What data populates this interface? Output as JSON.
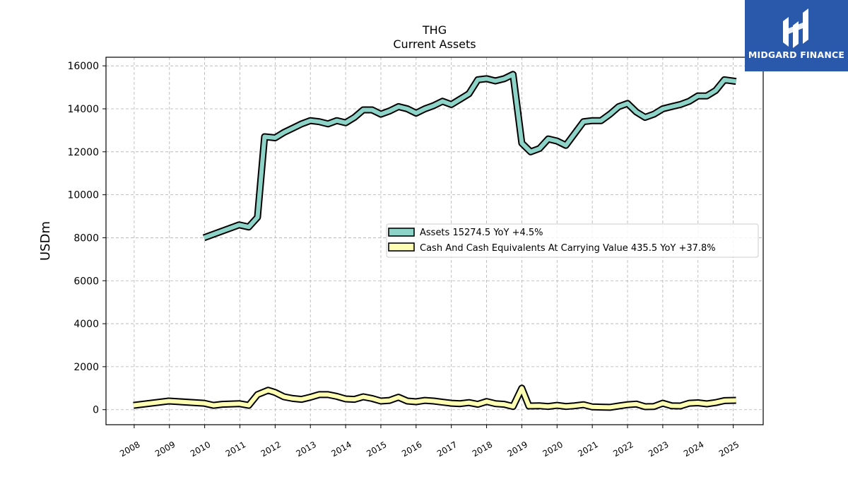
{
  "brand": {
    "name": "MIDGARD FINANCE",
    "logo_icon": "midgard-logo-icon",
    "color": "#2a58ab"
  },
  "chart_data": {
    "type": "line",
    "title": "THG",
    "subtitle": "Current  Assets",
    "ylabel": "USDm",
    "xlabel": "",
    "ylim": [
      -700,
      16400
    ],
    "xlim": [
      2007.2,
      2025.85
    ],
    "yticks": [
      0,
      2000,
      4000,
      6000,
      8000,
      10000,
      12000,
      14000,
      16000
    ],
    "xticks": [
      "2008",
      "2009",
      "2010",
      "2011",
      "2012",
      "2013",
      "2014",
      "2015",
      "2016",
      "2017",
      "2018",
      "2019",
      "2020",
      "2021",
      "2022",
      "2023",
      "2024",
      "2025"
    ],
    "grid": true,
    "legend_position": "center-right",
    "series": [
      {
        "name": "Assets",
        "legend_label": "Assets  15274.5 YoY +4.5%",
        "color": "#8dd3c7",
        "points": [
          [
            2009.98,
            8000
          ],
          [
            2010.98,
            8600
          ],
          [
            2011.25,
            8500
          ],
          [
            2011.5,
            8950
          ],
          [
            2011.7,
            12700
          ],
          [
            2012.0,
            12650
          ],
          [
            2012.25,
            12900
          ],
          [
            2012.5,
            13100
          ],
          [
            2012.75,
            13300
          ],
          [
            2013.0,
            13450
          ],
          [
            2013.25,
            13400
          ],
          [
            2013.5,
            13300
          ],
          [
            2013.75,
            13450
          ],
          [
            2014.0,
            13350
          ],
          [
            2014.25,
            13600
          ],
          [
            2014.5,
            13950
          ],
          [
            2014.75,
            13950
          ],
          [
            2015.0,
            13750
          ],
          [
            2015.25,
            13900
          ],
          [
            2015.5,
            14100
          ],
          [
            2015.75,
            14000
          ],
          [
            2016.0,
            13800
          ],
          [
            2016.25,
            14000
          ],
          [
            2016.5,
            14150
          ],
          [
            2016.75,
            14350
          ],
          [
            2017.0,
            14200
          ],
          [
            2017.25,
            14450
          ],
          [
            2017.5,
            14700
          ],
          [
            2017.75,
            15350
          ],
          [
            2018.0,
            15400
          ],
          [
            2018.25,
            15300
          ],
          [
            2018.5,
            15400
          ],
          [
            2018.75,
            15600
          ],
          [
            2019.0,
            12400
          ],
          [
            2019.25,
            12000
          ],
          [
            2019.5,
            12150
          ],
          [
            2019.75,
            12600
          ],
          [
            2020.0,
            12500
          ],
          [
            2020.25,
            12300
          ],
          [
            2020.5,
            12850
          ],
          [
            2020.75,
            13400
          ],
          [
            2021.0,
            13450
          ],
          [
            2021.25,
            13450
          ],
          [
            2021.5,
            13750
          ],
          [
            2021.75,
            14100
          ],
          [
            2022.0,
            14250
          ],
          [
            2022.25,
            13850
          ],
          [
            2022.5,
            13600
          ],
          [
            2022.75,
            13750
          ],
          [
            2023.0,
            14000
          ],
          [
            2023.25,
            14100
          ],
          [
            2023.5,
            14200
          ],
          [
            2023.75,
            14350
          ],
          [
            2024.0,
            14600
          ],
          [
            2024.25,
            14600
          ],
          [
            2024.5,
            14850
          ],
          [
            2024.75,
            15350
          ],
          [
            2025.08,
            15274.5
          ]
        ]
      },
      {
        "name": "Cash And Cash Equivalents At Carrying Value",
        "legend_label": "Cash And Cash Equivalents At Carrying Value  435.5 YoY +37.8%",
        "color": "#ffffb3",
        "points": [
          [
            2007.98,
            200
          ],
          [
            2008.98,
            400
          ],
          [
            2009.98,
            300
          ],
          [
            2010.25,
            200
          ],
          [
            2010.5,
            250
          ],
          [
            2010.98,
            280
          ],
          [
            2011.25,
            200
          ],
          [
            2011.5,
            700
          ],
          [
            2011.8,
            900
          ],
          [
            2012.0,
            800
          ],
          [
            2012.25,
            600
          ],
          [
            2012.5,
            520
          ],
          [
            2012.75,
            480
          ],
          [
            2013.0,
            580
          ],
          [
            2013.25,
            700
          ],
          [
            2013.5,
            700
          ],
          [
            2013.75,
            620
          ],
          [
            2014.0,
            500
          ],
          [
            2014.25,
            480
          ],
          [
            2014.5,
            600
          ],
          [
            2014.75,
            520
          ],
          [
            2015.0,
            400
          ],
          [
            2015.25,
            430
          ],
          [
            2015.5,
            580
          ],
          [
            2015.75,
            400
          ],
          [
            2016.0,
            370
          ],
          [
            2016.25,
            430
          ],
          [
            2016.5,
            400
          ],
          [
            2016.75,
            350
          ],
          [
            2017.0,
            300
          ],
          [
            2017.25,
            280
          ],
          [
            2017.5,
            330
          ],
          [
            2017.75,
            250
          ],
          [
            2018.0,
            380
          ],
          [
            2018.25,
            280
          ],
          [
            2018.5,
            250
          ],
          [
            2018.75,
            150
          ],
          [
            2019.0,
            1000
          ],
          [
            2019.2,
            170
          ],
          [
            2019.5,
            180
          ],
          [
            2019.75,
            150
          ],
          [
            2020.0,
            200
          ],
          [
            2020.25,
            150
          ],
          [
            2020.5,
            180
          ],
          [
            2020.75,
            230
          ],
          [
            2021.0,
            130
          ],
          [
            2021.25,
            120
          ],
          [
            2021.5,
            110
          ],
          [
            2021.75,
            170
          ],
          [
            2022.0,
            230
          ],
          [
            2022.25,
            260
          ],
          [
            2022.5,
            140
          ],
          [
            2022.75,
            150
          ],
          [
            2023.0,
            300
          ],
          [
            2023.25,
            180
          ],
          [
            2023.5,
            170
          ],
          [
            2023.75,
            300
          ],
          [
            2024.0,
            320
          ],
          [
            2024.25,
            270
          ],
          [
            2024.5,
            330
          ],
          [
            2024.75,
            420
          ],
          [
            2025.08,
            435.5
          ]
        ]
      }
    ]
  }
}
